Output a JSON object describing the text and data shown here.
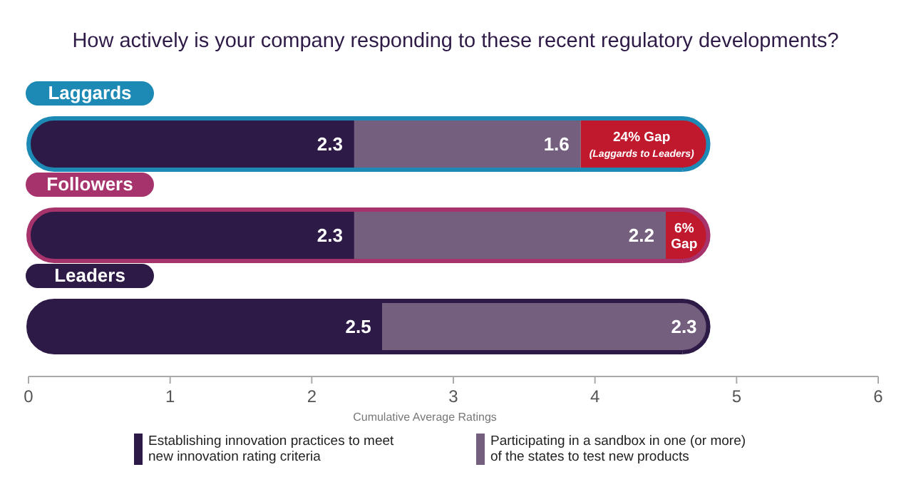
{
  "chart_data": {
    "type": "bar",
    "orientation": "horizontal",
    "stacked": true,
    "title": "How actively is your company responding to these recent regulatory developments?",
    "xlabel": "Cumulative Average Ratings",
    "categories": [
      "Laggards",
      "Followers",
      "Leaders"
    ],
    "colors": [
      "#1d8ab5",
      "#a6336b",
      "#2e1a47"
    ],
    "series": [
      {
        "name": "Establishing innovation practices to meet\nnew innovation rating criteria",
        "color": "#2e1a47",
        "values": [
          2.3,
          2.3,
          2.5
        ],
        "value_labels": [
          "2.3",
          "2.3",
          "2.5"
        ]
      },
      {
        "name": "Participating in a sandbox in one (or more)\nof the states to test new products",
        "color": "#745f7e",
        "values": [
          1.6,
          2.2,
          2.3
        ],
        "value_labels": [
          "1.6",
          "2.2",
          "2.3"
        ]
      },
      {
        "color": "#c0182d",
        "values": [
          0.9,
          0.3,
          null
        ]
      }
    ],
    "annotations": [
      "24% Gap\n(Laggards to Leaders)",
      "6%\nGap"
    ],
    "xlim": [
      0,
      6
    ],
    "xticks": [
      0,
      1,
      2,
      3,
      4,
      5,
      6
    ],
    "legend": "bottom"
  }
}
